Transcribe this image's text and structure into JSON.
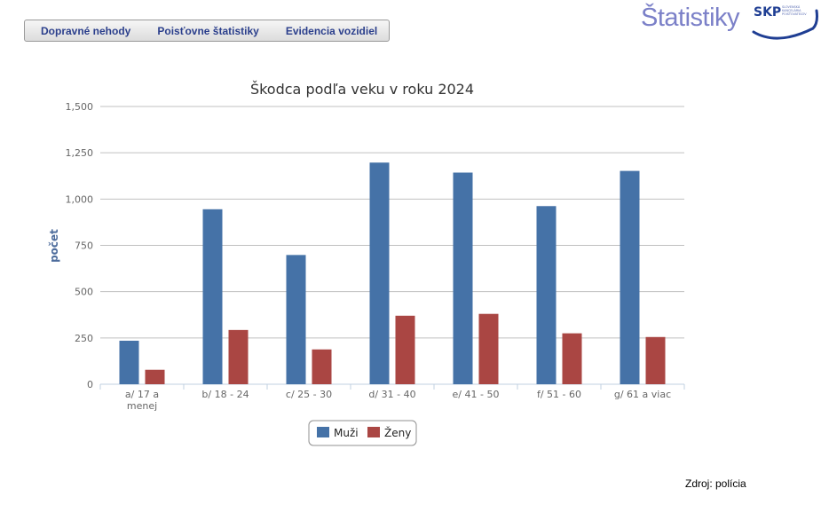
{
  "nav": {
    "items": [
      {
        "label": "Dopravné nehody"
      },
      {
        "label": "Poisťovne štatistiky"
      },
      {
        "label": "Evidencia vozidiel"
      }
    ]
  },
  "brand": {
    "title": "Štatistiky",
    "logo_text": "SKP",
    "logo_subtitle": [
      "SLOVENSKÁ",
      "KANCELÁRIA",
      "POISŤOVATEĽOV"
    ],
    "logo_color": "#1f3e93"
  },
  "chart_data": {
    "type": "bar",
    "title": "Škodca podľa veku v roku 2024",
    "ylabel": "počet",
    "xlabel": "",
    "ylim": [
      0,
      1500
    ],
    "yticks": [
      0,
      250,
      500,
      750,
      1000,
      1250,
      1500
    ],
    "ytick_labels": [
      "0",
      "250",
      "500",
      "750",
      "1,000",
      "1,250",
      "1,500"
    ],
    "categories": [
      "a/ 17 a menej",
      "b/ 18 - 24",
      "c/ 25 - 30",
      "d/ 31 - 40",
      "e/ 41 - 50",
      "f/ 51 - 60",
      "g/ 61 a viac"
    ],
    "series": [
      {
        "name": "Muži",
        "color": "#4572a7",
        "values": [
          235,
          945,
          698,
          1197,
          1143,
          962,
          1152
        ]
      },
      {
        "name": "Ženy",
        "color": "#aa4643",
        "values": [
          78,
          293,
          188,
          370,
          380,
          275,
          255
        ]
      }
    ],
    "grid": true,
    "legend_position": "bottom-center"
  },
  "footer": {
    "source": "Zdroj: polícia"
  }
}
